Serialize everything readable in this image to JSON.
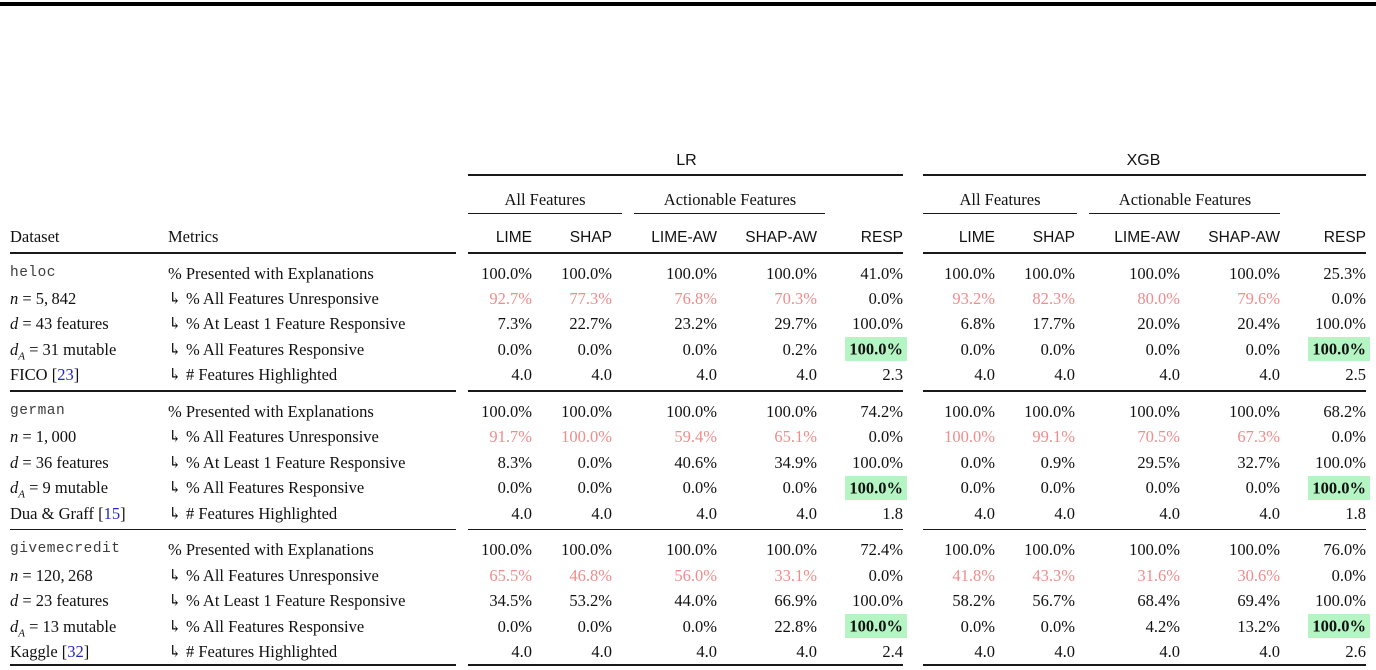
{
  "table": {
    "model_groups": [
      {
        "label": "LR"
      },
      {
        "label": "XGB"
      }
    ],
    "subgroups": {
      "all": "All Features",
      "actionable": "Actionable Features"
    },
    "columns": [
      "LIME",
      "SHAP",
      "LIME-AW",
      "SHAP-AW",
      "RESP"
    ],
    "row_headers": {
      "dataset": "Dataset",
      "metrics": "Metrics"
    },
    "metrics": [
      "% Presented with Explanations",
      "↳ % All Features Unresponsive",
      "↳ % At Least 1 Feature Responsive",
      "↳ % All Features Responsive",
      "↳ # Features Highlighted"
    ],
    "colors": {
      "muted_red": "#f08c8c",
      "highlight_green": "#b4f5c3",
      "citation_blue": "#2323cc"
    },
    "style_rules": {
      "unresponsive_row_muted_red_first_cols": 4,
      "all_responsive_row_green_bold_col": "RESP"
    },
    "sections": [
      {
        "dataset": {
          "name": "heloc",
          "n": {
            "var": "n",
            "rest": " = 5, 842"
          },
          "d": {
            "var": "d",
            "rest": " = 43 features"
          },
          "da": {
            "var": "d",
            "sub": "A",
            "rest": " = 31 mutable"
          },
          "source": "FICO",
          "cite": "23"
        },
        "lr": [
          [
            "100.0%",
            "100.0%",
            "100.0%",
            "100.0%",
            "41.0%"
          ],
          [
            "92.7%",
            "77.3%",
            "76.8%",
            "70.3%",
            "0.0%"
          ],
          [
            "7.3%",
            "22.7%",
            "23.2%",
            "29.7%",
            "100.0%"
          ],
          [
            "0.0%",
            "0.0%",
            "0.0%",
            "0.2%",
            "100.0%"
          ],
          [
            "4.0",
            "4.0",
            "4.0",
            "4.0",
            "2.3"
          ]
        ],
        "xgb": [
          [
            "100.0%",
            "100.0%",
            "100.0%",
            "100.0%",
            "25.3%"
          ],
          [
            "93.2%",
            "82.3%",
            "80.0%",
            "79.6%",
            "0.0%"
          ],
          [
            "6.8%",
            "17.7%",
            "20.0%",
            "20.4%",
            "100.0%"
          ],
          [
            "0.0%",
            "0.0%",
            "0.0%",
            "0.0%",
            "100.0%"
          ],
          [
            "4.0",
            "4.0",
            "4.0",
            "4.0",
            "2.5"
          ]
        ]
      },
      {
        "dataset": {
          "name": "german",
          "n": {
            "var": "n",
            "rest": " = 1, 000"
          },
          "d": {
            "var": "d",
            "rest": " = 36 features"
          },
          "da": {
            "var": "d",
            "sub": "A",
            "rest": " = 9 mutable"
          },
          "source": "Dua & Graff",
          "cite": "15"
        },
        "lr": [
          [
            "100.0%",
            "100.0%",
            "100.0%",
            "100.0%",
            "74.2%"
          ],
          [
            "91.7%",
            "100.0%",
            "59.4%",
            "65.1%",
            "0.0%"
          ],
          [
            "8.3%",
            "0.0%",
            "40.6%",
            "34.9%",
            "100.0%"
          ],
          [
            "0.0%",
            "0.0%",
            "0.0%",
            "0.0%",
            "100.0%"
          ],
          [
            "4.0",
            "4.0",
            "4.0",
            "4.0",
            "1.8"
          ]
        ],
        "xgb": [
          [
            "100.0%",
            "100.0%",
            "100.0%",
            "100.0%",
            "68.2%"
          ],
          [
            "100.0%",
            "99.1%",
            "70.5%",
            "67.3%",
            "0.0%"
          ],
          [
            "0.0%",
            "0.9%",
            "29.5%",
            "32.7%",
            "100.0%"
          ],
          [
            "0.0%",
            "0.0%",
            "0.0%",
            "0.0%",
            "100.0%"
          ],
          [
            "4.0",
            "4.0",
            "4.0",
            "4.0",
            "1.8"
          ]
        ]
      },
      {
        "dataset": {
          "name": "givemecredit",
          "n": {
            "var": "n",
            "rest": " = 120, 268"
          },
          "d": {
            "var": "d",
            "rest": " = 23 features"
          },
          "da": {
            "var": "d",
            "sub": "A",
            "rest": " = 13 mutable"
          },
          "source": "Kaggle",
          "cite": "32"
        },
        "lr": [
          [
            "100.0%",
            "100.0%",
            "100.0%",
            "100.0%",
            "72.4%"
          ],
          [
            "65.5%",
            "46.8%",
            "56.0%",
            "33.1%",
            "0.0%"
          ],
          [
            "34.5%",
            "53.2%",
            "44.0%",
            "66.9%",
            "100.0%"
          ],
          [
            "0.0%",
            "0.0%",
            "0.0%",
            "22.8%",
            "100.0%"
          ],
          [
            "4.0",
            "4.0",
            "4.0",
            "4.0",
            "2.4"
          ]
        ],
        "xgb": [
          [
            "100.0%",
            "100.0%",
            "100.0%",
            "100.0%",
            "76.0%"
          ],
          [
            "41.8%",
            "43.3%",
            "31.6%",
            "30.6%",
            "0.0%"
          ],
          [
            "58.2%",
            "56.7%",
            "68.4%",
            "69.4%",
            "100.0%"
          ],
          [
            "0.0%",
            "0.0%",
            "4.2%",
            "13.2%",
            "100.0%"
          ],
          [
            "4.0",
            "4.0",
            "4.0",
            "4.0",
            "2.6"
          ]
        ]
      }
    ]
  }
}
